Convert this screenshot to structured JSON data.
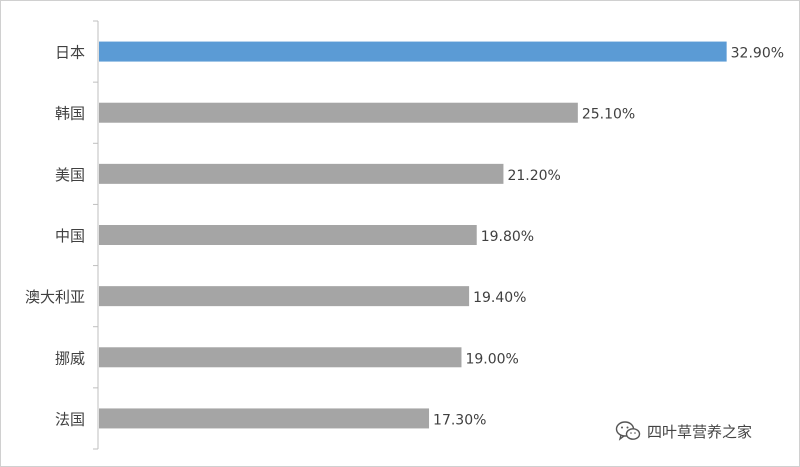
{
  "chart_data": {
    "type": "bar",
    "orientation": "horizontal",
    "categories": [
      "日本",
      "韩国",
      "美国",
      "中国",
      "澳大利亚",
      "挪威",
      "法国"
    ],
    "values": [
      32.9,
      25.1,
      21.2,
      19.8,
      19.4,
      19.0,
      17.3
    ],
    "value_labels": [
      "32.90%",
      "25.10%",
      "21.20%",
      "19.80%",
      "19.40%",
      "19.00%",
      "17.30%"
    ],
    "xlim": [
      0,
      33.6
    ],
    "grid": false,
    "legend": "none",
    "colors": {
      "highlight": "#5b9bd5",
      "default": "#a5a5a5",
      "axis": "#bfbfbf",
      "label_text": "#404040"
    },
    "highlight_index": 0
  },
  "watermark": {
    "text": "四叶草营养之家",
    "icon": "wechat-icon"
  }
}
